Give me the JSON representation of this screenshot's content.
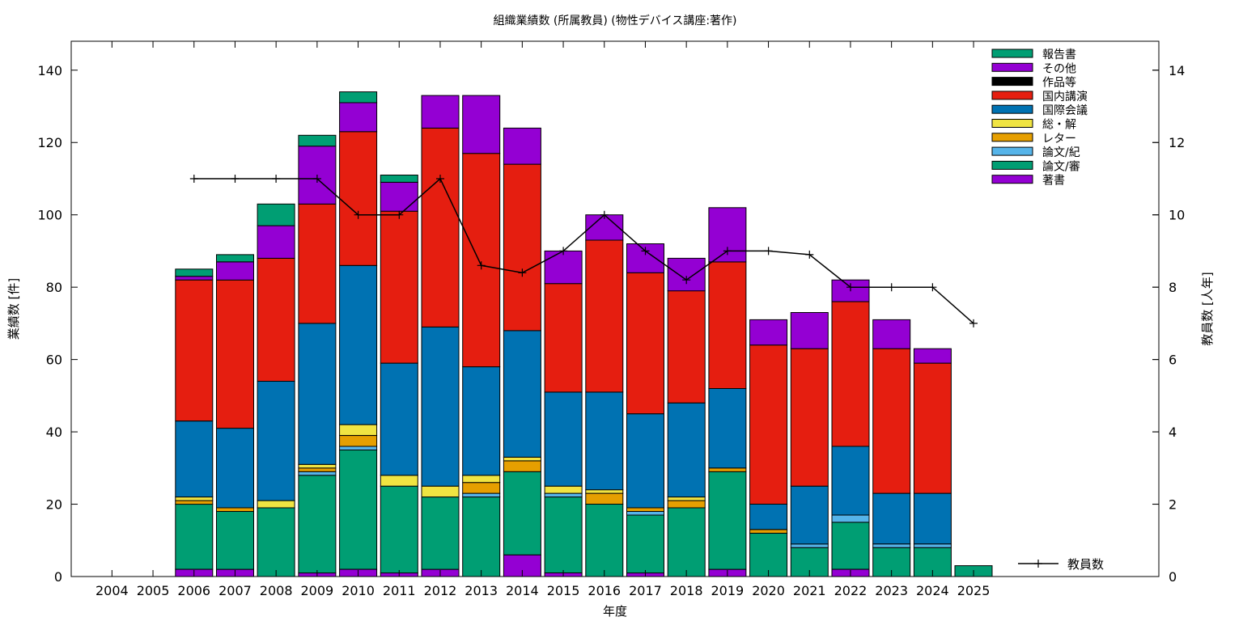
{
  "chart_data": {
    "type": "bar",
    "stacked": true,
    "title": "組織業績数 (所属教員) (物性デバイス講座:著作)",
    "xlabel": "年度",
    "ylabel": "業績数 [件]",
    "y2label": "教員数 [人年]",
    "ylim": [
      0,
      148
    ],
    "y2lim": [
      0,
      14.8
    ],
    "yticks": [
      0,
      20,
      40,
      60,
      80,
      100,
      120,
      140
    ],
    "y2ticks": [
      0,
      2,
      4,
      6,
      8,
      10,
      12,
      14
    ],
    "grid": false,
    "legend_position": "top-right",
    "categories": [
      "2004",
      "2005",
      "2006",
      "2007",
      "2008",
      "2009",
      "2010",
      "2011",
      "2012",
      "2013",
      "2014",
      "2015",
      "2016",
      "2017",
      "2018",
      "2019",
      "2020",
      "2021",
      "2022",
      "2023",
      "2024",
      "2025"
    ],
    "series": [
      {
        "name": "著書",
        "color": "#9400d3",
        "values": [
          0,
          0,
          2,
          2,
          0,
          1,
          2,
          1,
          2,
          0,
          6,
          1,
          0,
          1,
          0,
          2,
          0,
          0,
          2,
          0,
          0,
          0
        ]
      },
      {
        "name": "論文/審",
        "color": "#009e73",
        "values": [
          0,
          0,
          18,
          16,
          19,
          27,
          33,
          24,
          20,
          22,
          23,
          21,
          20,
          16,
          19,
          27,
          12,
          8,
          13,
          8,
          8,
          0
        ]
      },
      {
        "name": "論文/紀",
        "color": "#56b4e9",
        "values": [
          0,
          0,
          0,
          0,
          0,
          1,
          1,
          0,
          0,
          1,
          0,
          1,
          0,
          1,
          0,
          0,
          0,
          1,
          2,
          1,
          1,
          0
        ]
      },
      {
        "name": "レター",
        "color": "#e69f00",
        "values": [
          0,
          0,
          1,
          1,
          0,
          1,
          3,
          0,
          0,
          3,
          3,
          0,
          3,
          1,
          2,
          1,
          1,
          0,
          0,
          0,
          0,
          0
        ]
      },
      {
        "name": "総・解",
        "color": "#f0e442",
        "values": [
          0,
          0,
          1,
          0,
          2,
          1,
          3,
          3,
          3,
          2,
          1,
          2,
          1,
          0,
          1,
          0,
          0,
          0,
          0,
          0,
          0,
          0
        ]
      },
      {
        "name": "国際会議",
        "color": "#0072b2",
        "values": [
          0,
          0,
          21,
          22,
          33,
          39,
          44,
          31,
          44,
          30,
          35,
          26,
          27,
          26,
          26,
          22,
          7,
          16,
          19,
          14,
          14,
          0
        ]
      },
      {
        "name": "国内講演",
        "color": "#e51e10",
        "values": [
          0,
          0,
          39,
          41,
          34,
          33,
          37,
          42,
          55,
          59,
          46,
          30,
          42,
          39,
          31,
          35,
          44,
          38,
          40,
          40,
          36,
          0
        ]
      },
      {
        "name": "作品等",
        "color": "#000000",
        "values": [
          0,
          0,
          0,
          0,
          0,
          0,
          0,
          0,
          0,
          0,
          0,
          0,
          0,
          0,
          0,
          0,
          0,
          0,
          0,
          0,
          0,
          0
        ]
      },
      {
        "name": "その他",
        "color": "#9400d3",
        "values": [
          0,
          0,
          1,
          5,
          9,
          16,
          8,
          8,
          9,
          16,
          10,
          9,
          7,
          8,
          9,
          15,
          7,
          10,
          6,
          8,
          4,
          0
        ]
      },
      {
        "name": "報告書",
        "color": "#009e73",
        "values": [
          0,
          0,
          2,
          2,
          6,
          3,
          3,
          2,
          0,
          0,
          0,
          0,
          0,
          0,
          0,
          0,
          0,
          0,
          0,
          0,
          0,
          3
        ]
      }
    ],
    "legend_order": [
      "報告書",
      "その他",
      "作品等",
      "国内講演",
      "国際会議",
      "総・解",
      "レター",
      "論文/紀",
      "論文/審",
      "著書"
    ],
    "line": {
      "name": "教員数",
      "x": [
        "2006",
        "2007",
        "2008",
        "2009",
        "2010",
        "2011",
        "2012",
        "2013",
        "2014",
        "2015",
        "2016",
        "2017",
        "2018",
        "2019",
        "2020",
        "2021",
        "2022",
        "2023",
        "2024",
        "2025"
      ],
      "values": [
        11,
        11,
        11,
        11,
        10,
        10,
        11,
        8.6,
        8.4,
        9,
        10,
        9,
        8.2,
        9,
        9,
        8.9,
        8,
        8,
        8,
        7
      ]
    }
  }
}
